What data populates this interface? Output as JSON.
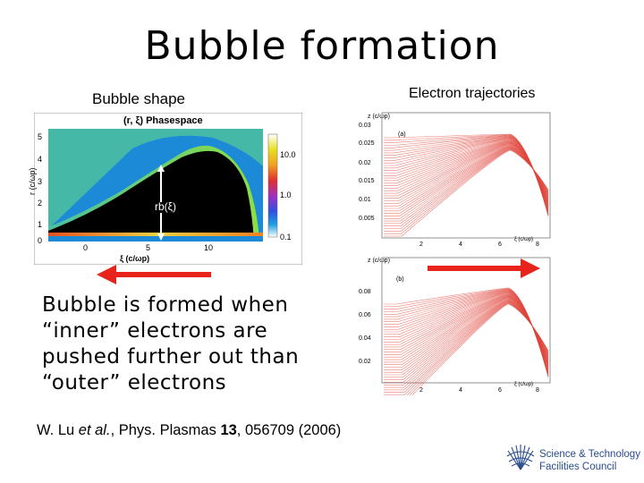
{
  "slide": {
    "title": "Bubble formation",
    "left_caption": "Bubble shape",
    "right_caption": "Electron trajectories",
    "body_lines": [
      "Bubble is formed when",
      "“inner” electrons are",
      "pushed further out than",
      "“outer” electrons"
    ],
    "citation": {
      "pre": "W. Lu ",
      "etal": "et al.",
      "mid": ", Phys. Plasmas ",
      "volume": "13",
      "post": ", 056709 (2006)"
    }
  },
  "phasespace": {
    "title": "(r, ξ) Phasespace",
    "ylabel": "r (c/ωp)",
    "xlabel": "ξ (c/ωp)",
    "y_ticks": [
      "5",
      "4",
      "3",
      "2",
      "1",
      "0"
    ],
    "x_ticks": [
      "0",
      "5",
      "10"
    ],
    "colorbar_ticks": [
      "10.0",
      "1.0",
      "0.1"
    ],
    "annotation": "rb(ξ)"
  },
  "traj_a": {
    "panel_label": "(a)",
    "ylabel": "z  (c/ωp)",
    "y_ticks": [
      "0.03",
      "0.025",
      "0.02",
      "0.015",
      "0.01",
      "0.005"
    ],
    "x_ticks": [
      "2",
      "4",
      "6",
      "8"
    ],
    "xlabel": "ξ  (c/ωp)"
  },
  "traj_b": {
    "panel_label": "(b)",
    "ylabel": "z  (c/ωp)",
    "y_ticks": [
      "0.08",
      "0.06",
      "0.04",
      "0.02"
    ],
    "x_ticks": [
      "2",
      "4",
      "6",
      "8"
    ],
    "xlabel": "ξ  (c/ωp)"
  },
  "logo": {
    "line1": "Science & Technology",
    "line2": "Facilities Council",
    "brand_color": "#2a4c8c"
  },
  "colors": {
    "arrow": "#e8231c",
    "trajectory": "#e0463c"
  }
}
